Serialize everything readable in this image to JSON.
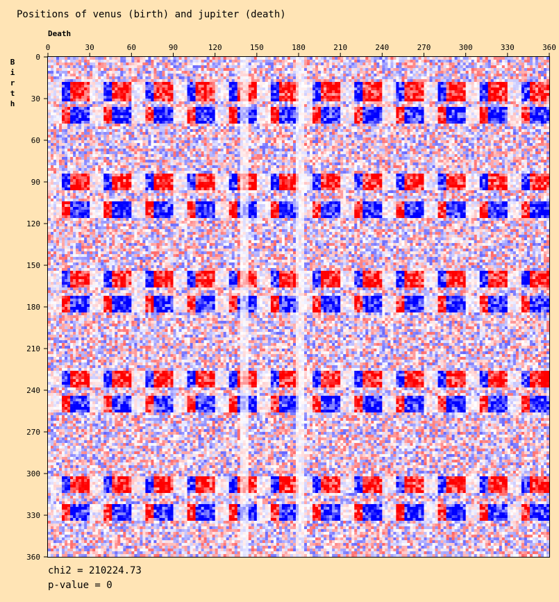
{
  "title": "Positions of venus (birth) and jupiter (death)",
  "chart_data": {
    "type": "heatmap",
    "title": "Positions of venus (birth) and jupiter (death)",
    "xlabel": "Death",
    "ylabel": "Birth",
    "xlim": [
      0,
      360
    ],
    "ylim": [
      0,
      360
    ],
    "xticks": [
      0,
      30,
      60,
      90,
      120,
      150,
      180,
      210,
      240,
      270,
      300,
      330,
      360
    ],
    "yticks": [
      0,
      30,
      60,
      90,
      120,
      150,
      180,
      210,
      240,
      270,
      300,
      330,
      360
    ],
    "cell_size_degrees": 2,
    "colormap": {
      "negative": "#FF0000",
      "neutral": "#FFFFFF",
      "positive": "#0000FF"
    },
    "red_blue_band_centers_birth_deg": [
      25,
      42,
      90,
      110,
      160,
      178,
      232,
      250,
      308,
      328
    ],
    "periodic_blocks_death_period_deg": 30,
    "light_column_death_deg": [
      140,
      180
    ]
  },
  "stats": {
    "chi2": "chi2 = 210224.73",
    "pvalue": "p-value = 0"
  },
  "colors": {
    "background": "#FFE4B5",
    "positive": "#0000FF",
    "negative": "#FF0000"
  }
}
